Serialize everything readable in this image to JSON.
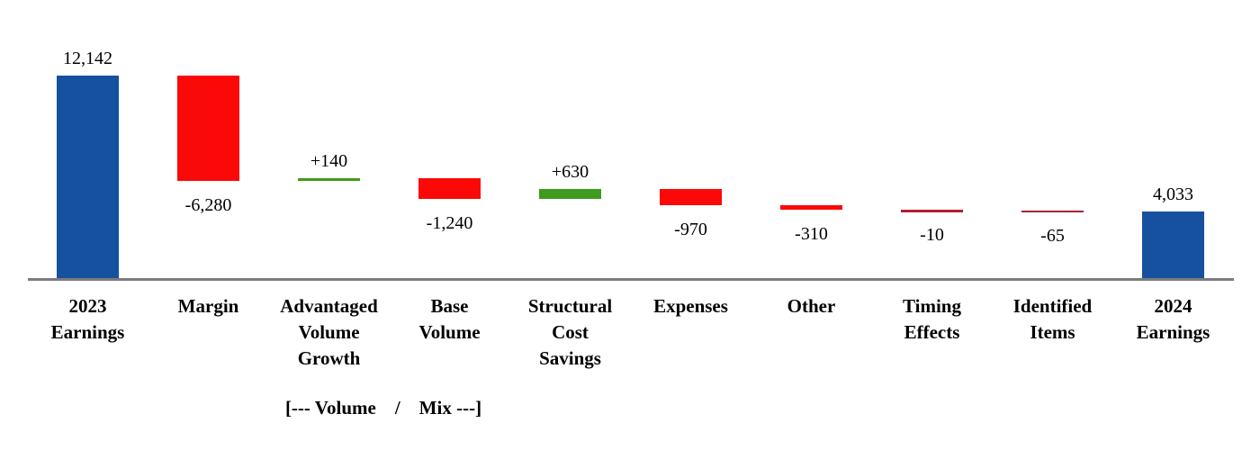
{
  "chart_data": {
    "type": "bar",
    "subtype": "waterfall",
    "title": "",
    "xlabel": "",
    "ylabel": "",
    "ylim": [
      0,
      12142
    ],
    "grid": false,
    "legend": "none",
    "annotation": "[--- Volume    /    Mix ---]",
    "colors": {
      "total": "#15519e",
      "increase": "#3f9b1f",
      "decrease": "#fb0909",
      "decrease_thin": "#b02030",
      "axis": "#7c7c7c"
    },
    "categories": [
      "2023\nEarnings",
      "Margin",
      "Advantaged\nVolume\nGrowth",
      "Base\nVolume",
      "Structural\nCost\nSavings",
      "Expenses",
      "Other",
      "Timing\nEffects",
      "Identified\nItems",
      "2024\nEarnings"
    ],
    "items": [
      {
        "name": "2023-earnings",
        "category": "2023\nEarnings",
        "value": 12142,
        "display": "12,142",
        "kind": "total",
        "label_pos": "above"
      },
      {
        "name": "margin",
        "category": "Margin",
        "value": -6280,
        "display": "-6,280",
        "kind": "delta",
        "label_pos": "below"
      },
      {
        "name": "advantaged-volume-growth",
        "category": "Advantaged\nVolume\nGrowth",
        "value": 140,
        "display": "+140",
        "kind": "delta",
        "label_pos": "above"
      },
      {
        "name": "base-volume",
        "category": "Base\nVolume",
        "value": -1240,
        "display": "-1,240",
        "kind": "delta",
        "label_pos": "below"
      },
      {
        "name": "structural-cost-savings",
        "category": "Structural\nCost\nSavings",
        "value": 630,
        "display": "+630",
        "kind": "delta",
        "label_pos": "above"
      },
      {
        "name": "expenses",
        "category": "Expenses",
        "value": -970,
        "display": "-970",
        "kind": "delta",
        "label_pos": "below"
      },
      {
        "name": "other",
        "category": "Other",
        "value": -310,
        "display": "-310",
        "kind": "delta",
        "label_pos": "below"
      },
      {
        "name": "timing-effects",
        "category": "Timing\nEffects",
        "value": -10,
        "display": "-10",
        "kind": "delta",
        "label_pos": "below"
      },
      {
        "name": "identified-items",
        "category": "Identified\nItems",
        "value": -65,
        "display": "-65",
        "kind": "delta",
        "label_pos": "below"
      },
      {
        "name": "2024-earnings",
        "category": "2024\nEarnings",
        "value": 4033,
        "display": "4,033",
        "kind": "total",
        "label_pos": "above"
      }
    ]
  }
}
